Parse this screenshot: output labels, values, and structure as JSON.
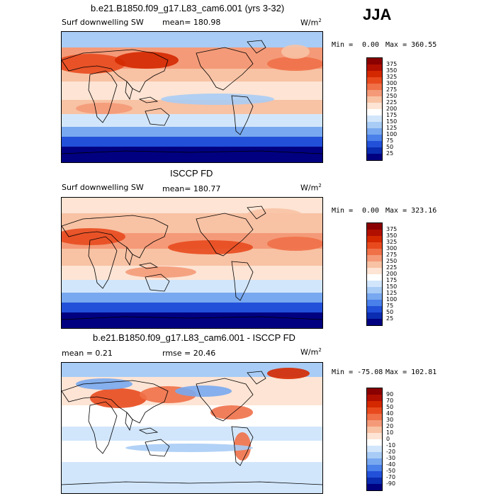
{
  "season": "JJA",
  "panels": [
    {
      "title": "b.e21.B1850.f09_g17.L83_cam6.001 (yrs 3-32)",
      "left_label": "Surf downwelling SW",
      "mean_label": "mean= 180.98",
      "units": "W/m",
      "units_sup": "2",
      "min_label": "Min =",
      "min_value": "0.00",
      "max_label": "Max = 360.55",
      "levels": [
        "375",
        "350",
        "325",
        "300",
        "275",
        "250",
        "225",
        "200",
        "175",
        "150",
        "125",
        "100",
        "75",
        "50",
        "25"
      ]
    },
    {
      "title": "ISCCP FD",
      "left_label": "Surf downwelling SW",
      "mean_label": "mean= 180.77",
      "units": "W/m",
      "units_sup": "2",
      "min_label": "Min =",
      "min_value": "0.00",
      "max_label": "Max = 323.16",
      "levels": [
        "375",
        "350",
        "325",
        "300",
        "275",
        "250",
        "225",
        "200",
        "175",
        "150",
        "125",
        "100",
        "75",
        "50",
        "25"
      ]
    },
    {
      "title": "b.e21.B1850.f09_g17.L83_cam6.001 - ISCCP FD",
      "left_label": "mean =    0.21",
      "mean_label": "rmse =  20.46",
      "units": "W/m",
      "units_sup": "2",
      "min_label": "Min = -75.08",
      "min_value": "",
      "max_label": "Max = 102.81",
      "levels": [
        "90",
        "70",
        "50",
        "40",
        "30",
        "20",
        "10",
        "0",
        "-10",
        "-20",
        "-30",
        "-40",
        "-50",
        "-70",
        "-90"
      ]
    }
  ],
  "colors": {
    "abs_scale": [
      "#8b0000",
      "#b11000",
      "#d42800",
      "#e84a1e",
      "#f07048",
      "#f49a78",
      "#f8c2a4",
      "#fde4d4",
      "#ffffff",
      "#d2e6fb",
      "#a8ccf5",
      "#78a8ef",
      "#4a80ea",
      "#2250d8",
      "#0a2cb0",
      "#000080"
    ],
    "diff_scale": [
      "#8b0000",
      "#b11000",
      "#d42800",
      "#e84a1e",
      "#f07048",
      "#f49a78",
      "#f8c2a4",
      "#fde4d4",
      "#ffffff",
      "#d2e6fb",
      "#a8ccf5",
      "#78a8ef",
      "#4a80ea",
      "#2250d8",
      "#0a2cb0",
      "#000080"
    ]
  }
}
